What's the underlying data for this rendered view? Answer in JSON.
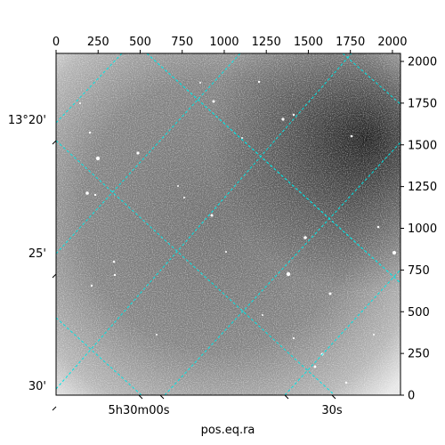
{
  "chart_data": {
    "type": "heatmap",
    "title": "",
    "xlabel": "pos.eq.ra",
    "ylabel": "",
    "pixel_axes": {
      "x_ticks": [
        0,
        250,
        500,
        750,
        1000,
        1250,
        1500,
        1750,
        2000
      ],
      "y_ticks": [
        0,
        250,
        500,
        750,
        1000,
        1250,
        1500,
        1750,
        2000
      ],
      "xlim": [
        0,
        2048
      ],
      "ylim": [
        0,
        2048
      ]
    },
    "world_axes": {
      "ra_tick_labels": [
        "5h30m00s",
        "30s"
      ],
      "dec_tick_labels": [
        "13°20'",
        "25'",
        "30'"
      ]
    },
    "grid_color": "#00e5e5",
    "colormap": "grayscale",
    "grid": true
  }
}
